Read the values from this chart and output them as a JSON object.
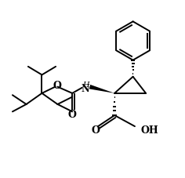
{
  "background_color": "#ffffff",
  "line_color": "#000000",
  "line_width": 1.4,
  "fig_width": 2.36,
  "fig_height": 2.28,
  "dpi": 100,
  "xlim": [
    -1.0,
    9.0
  ],
  "ylim": [
    1.5,
    10.0
  ]
}
